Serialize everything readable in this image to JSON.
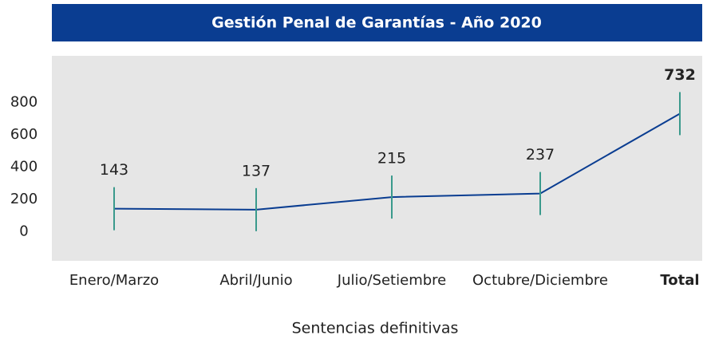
{
  "chart_data": {
    "type": "line",
    "title": "Gestión Penal de Garantías - Año 2020",
    "x_label": "Sentencias definitivas",
    "categories": [
      "Enero/Marzo",
      "Abril/Junio",
      "Julio/Setiembre",
      "Octubre/Diciembre",
      "Total"
    ],
    "series": [
      {
        "name": "Sentencias definitivas",
        "color": "#0a3d91",
        "values": [
          143,
          137,
          215,
          237,
          732
        ]
      }
    ],
    "ylim": [
      -180,
      1090
    ],
    "yticks": [
      0,
      200,
      400,
      600,
      800
    ]
  }
}
